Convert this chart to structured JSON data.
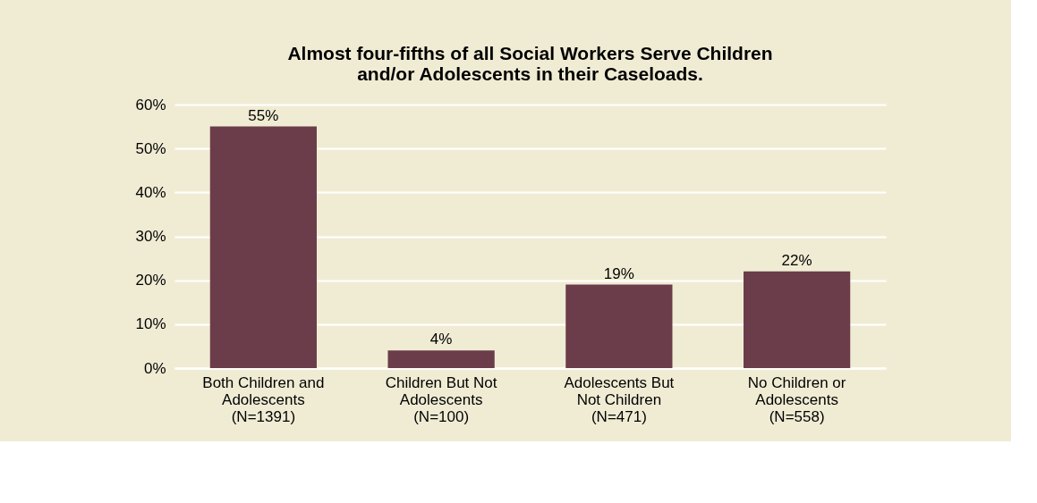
{
  "chart_data": {
    "type": "bar",
    "title": "Almost four-fifths of all Social Workers Serve Children\nand/or Adolescents in  their Caseloads.",
    "categories": [
      "Both Children and\nAdolescents\n(N=1391)",
      "Children But Not\nAdolescents\n(N=100)",
      "Adolescents But\nNot Children\n(N=471)",
      "No Children or\nAdolescents\n(N=558)"
    ],
    "values": [
      55,
      4,
      19,
      22
    ],
    "value_labels": [
      "55%",
      "4%",
      "19%",
      "22%"
    ],
    "color": "#6b3d4a",
    "ylim": [
      0,
      60
    ],
    "yticks": [
      {
        "value": 0,
        "label": "0%"
      },
      {
        "value": 10,
        "label": "10%"
      },
      {
        "value": 20,
        "label": "20%"
      },
      {
        "value": 30,
        "label": "30%"
      },
      {
        "value": 40,
        "label": "40%"
      },
      {
        "value": 50,
        "label": "50%"
      },
      {
        "value": 60,
        "label": "60%"
      }
    ],
    "grid": "y"
  }
}
